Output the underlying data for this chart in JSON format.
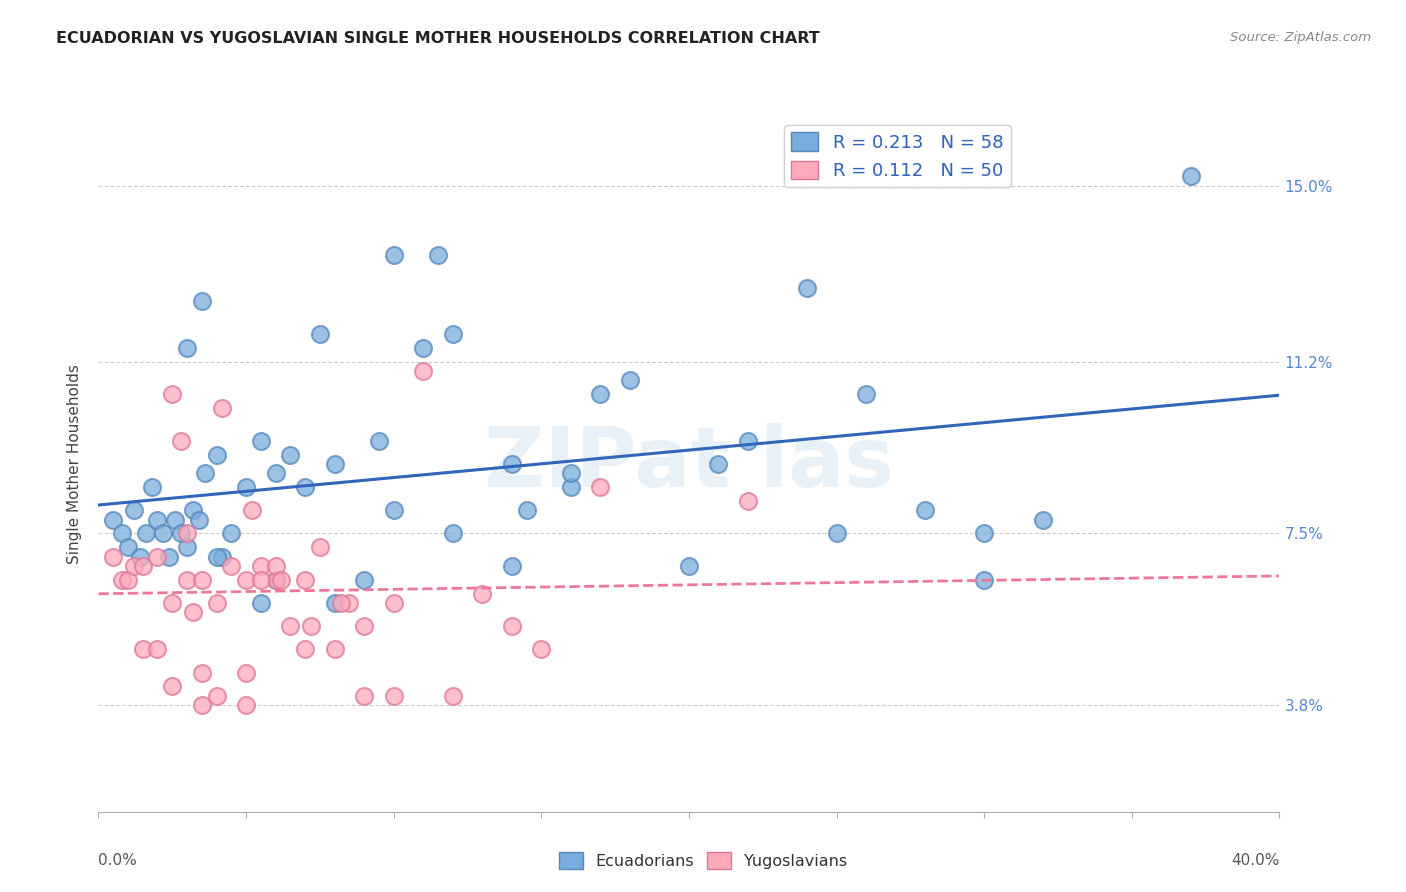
{
  "title": "ECUADORIAN VS YUGOSLAVIAN SINGLE MOTHER HOUSEHOLDS CORRELATION CHART",
  "source": "Source: ZipAtlas.com",
  "ylabel": "Single Mother Households",
  "ytick_labels": [
    "3.8%",
    "7.5%",
    "11.2%",
    "15.0%"
  ],
  "ytick_values": [
    3.8,
    7.5,
    11.2,
    15.0
  ],
  "xlim": [
    0.0,
    40.0
  ],
  "ylim": [
    1.5,
    16.5
  ],
  "ecuadorian_color": "#7aaddd",
  "ecuadorian_edge": "#5588bb",
  "yugoslavian_color": "#ffaabb",
  "yugoslavian_edge": "#dd7799",
  "trendline_blue": "#3366bb",
  "trendline_pink": "#ee7799",
  "background_color": "#ffffff",
  "grid_color": "#cccccc",
  "ecuadorians_x": [
    0.5,
    0.8,
    1.0,
    1.2,
    1.4,
    1.6,
    1.8,
    2.0,
    2.2,
    2.4,
    2.6,
    2.8,
    3.0,
    3.2,
    3.4,
    3.6,
    4.0,
    4.5,
    5.0,
    5.5,
    6.0,
    6.5,
    7.0,
    8.0,
    9.0,
    10.0,
    11.0,
    12.0,
    14.0,
    16.0,
    18.0,
    20.0,
    22.0,
    24.0,
    26.0,
    28.0,
    30.0,
    32.0,
    3.0,
    3.5,
    4.2,
    5.5,
    7.5,
    9.5,
    11.5,
    14.5,
    17.0,
    21.0,
    25.0,
    30.0,
    4.0,
    6.0,
    8.0,
    10.0,
    12.0,
    14.0,
    16.0,
    37.0
  ],
  "ecuadorians_y": [
    7.8,
    7.5,
    7.2,
    8.0,
    7.0,
    7.5,
    8.5,
    7.8,
    7.5,
    7.0,
    7.8,
    7.5,
    7.2,
    8.0,
    7.8,
    8.8,
    9.2,
    7.5,
    8.5,
    9.5,
    8.8,
    9.2,
    8.5,
    9.0,
    6.5,
    8.0,
    11.5,
    7.5,
    6.8,
    8.5,
    10.8,
    6.8,
    9.5,
    12.8,
    10.5,
    8.0,
    7.5,
    7.8,
    11.5,
    12.5,
    7.0,
    6.0,
    11.8,
    9.5,
    13.5,
    8.0,
    10.5,
    9.0,
    7.5,
    6.5,
    7.0,
    6.5,
    6.0,
    13.5,
    11.8,
    9.0,
    8.8,
    15.2
  ],
  "yugoslavians_x": [
    0.5,
    0.8,
    1.0,
    1.2,
    1.5,
    2.0,
    2.5,
    3.0,
    3.5,
    4.0,
    4.5,
    5.0,
    5.5,
    6.0,
    6.5,
    7.0,
    7.5,
    8.0,
    8.5,
    9.0,
    10.0,
    11.0,
    13.0,
    15.0,
    1.5,
    2.0,
    2.5,
    3.0,
    3.5,
    4.0,
    5.0,
    5.5,
    6.0,
    7.0,
    9.0,
    10.0,
    12.0,
    14.0,
    17.0,
    2.8,
    3.2,
    4.2,
    5.2,
    6.2,
    7.2,
    8.2,
    2.5,
    3.5,
    5.0,
    22.0
  ],
  "yugoslavians_y": [
    7.0,
    6.5,
    6.5,
    6.8,
    6.8,
    7.0,
    6.0,
    6.5,
    6.5,
    6.0,
    6.8,
    6.5,
    6.8,
    6.5,
    5.5,
    6.5,
    7.2,
    5.0,
    6.0,
    5.5,
    6.0,
    11.0,
    6.2,
    5.0,
    5.0,
    5.0,
    10.5,
    7.5,
    4.5,
    4.0,
    4.5,
    6.5,
    6.8,
    5.0,
    4.0,
    4.0,
    4.0,
    5.5,
    8.5,
    9.5,
    5.8,
    10.2,
    8.0,
    6.5,
    5.5,
    6.0,
    4.2,
    3.8,
    3.8,
    8.2
  ]
}
